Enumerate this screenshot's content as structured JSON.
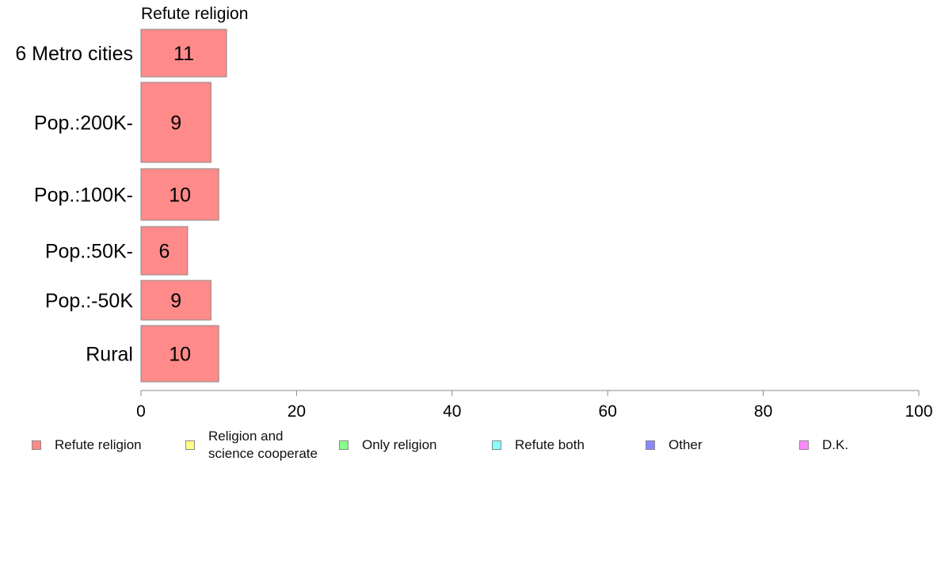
{
  "chart_data": {
    "type": "bar",
    "orientation": "horizontal",
    "title": "Refute religion",
    "categories": [
      "6 Metro cities",
      "Pop.:200K-",
      "Pop.:100K-",
      "Pop.:50K-",
      "Pop.:-50K",
      "Rural"
    ],
    "series": [
      {
        "name": "Refute religion",
        "color": "#ff8a8a",
        "values": [
          11,
          9,
          10,
          6,
          9,
          10
        ]
      }
    ],
    "data_labels": [
      "11",
      "9",
      "10",
      "6",
      "9",
      "10"
    ],
    "xlim": [
      0,
      100
    ],
    "xticks": [
      0,
      20,
      40,
      60,
      80,
      100
    ],
    "xlabel": "",
    "ylabel": "",
    "grid": false,
    "legend_position": "bottom"
  },
  "legend": {
    "items": [
      {
        "label": "Refute religion",
        "color": "#ff8a8a"
      },
      {
        "label": "Religion and\nscience cooperate",
        "color": "#ffff88"
      },
      {
        "label": "Only religion",
        "color": "#88ff88"
      },
      {
        "label": "Refute both",
        "color": "#88ffff"
      },
      {
        "label": "Other",
        "color": "#8888ff"
      },
      {
        "label": "D.K.",
        "color": "#ff88ff"
      }
    ]
  }
}
